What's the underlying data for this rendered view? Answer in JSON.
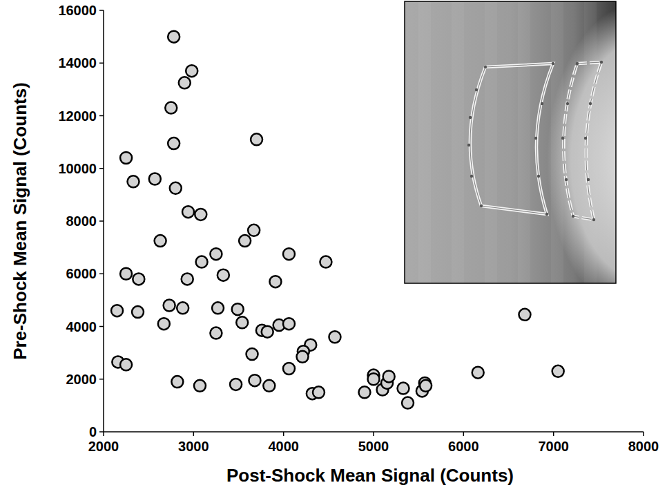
{
  "chart_data": {
    "type": "scatter",
    "x_label": "Post-Shock Mean Signal (Counts)",
    "y_label": "Pre-Shock Mean Signal (Counts)",
    "x": [
      2780,
      2980,
      2900,
      2750,
      2780,
      3700,
      2250,
      2330,
      2570,
      2800,
      2940,
      3080,
      2630,
      3570,
      3670,
      3250,
      3090,
      4060,
      4470,
      2250,
      2390,
      2930,
      3330,
      3910,
      2150,
      2380,
      2730,
      2880,
      3270,
      3490,
      2670,
      3540,
      3760,
      3820,
      3950,
      4060,
      3250,
      4570,
      4300,
      4220,
      4210,
      3650,
      4060,
      2160,
      2250,
      2820,
      3070,
      3470,
      3680,
      3840,
      4320,
      4390,
      4900,
      5000,
      5000,
      5100,
      5150,
      5170,
      5330,
      5380,
      5540,
      5570,
      5580,
      6160,
      6680,
      7050
    ],
    "values": [
      15000,
      13700,
      13250,
      12300,
      10950,
      11100,
      10400,
      9500,
      9600,
      9250,
      8350,
      8250,
      7250,
      7250,
      7650,
      6750,
      6450,
      6750,
      6450,
      6000,
      5800,
      5800,
      5950,
      5700,
      4600,
      4550,
      4800,
      4700,
      4700,
      4650,
      4100,
      4150,
      3850,
      3800,
      4050,
      4100,
      3750,
      3600,
      3300,
      3050,
      2850,
      2950,
      2400,
      2650,
      2550,
      1900,
      1750,
      1800,
      1950,
      1750,
      1450,
      1500,
      1500,
      2150,
      2000,
      1600,
      1850,
      2100,
      1650,
      1100,
      1550,
      1850,
      1750,
      2250,
      4450,
      2300
    ],
    "color": "#d3d3d3",
    "marker": "circle",
    "xlim": [
      2000,
      8000
    ],
    "xticks": [
      2000,
      3000,
      4000,
      5000,
      6000,
      7000,
      8000
    ],
    "ylim": [
      0,
      16000
    ],
    "yticks": [
      0,
      2000,
      4000,
      6000,
      8000,
      10000,
      12000,
      14000,
      16000
    ],
    "grid": false
  }
}
